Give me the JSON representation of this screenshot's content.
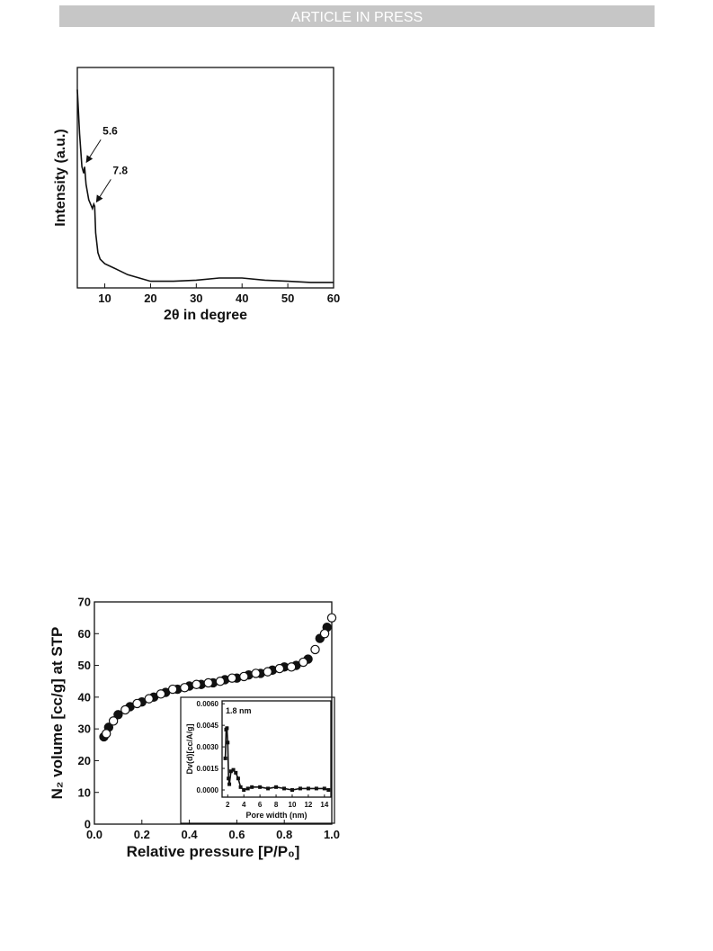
{
  "header": {
    "text": "ARTICLE IN PRESS"
  },
  "chart_data": [
    {
      "type": "line",
      "x_label": "2θ in degree",
      "y_label": "Intensity (a.u.)",
      "color": "#111111",
      "xlim": [
        4,
        60
      ],
      "ylim": [
        0,
        100
      ],
      "xticks": [
        10,
        20,
        30,
        40,
        50,
        60
      ],
      "x": [
        4,
        4.5,
        5,
        5.4,
        5.6,
        5.9,
        6.5,
        7.3,
        7.6,
        7.8,
        8,
        8.5,
        9,
        10,
        12,
        15,
        20,
        25,
        30,
        35,
        40,
        45,
        50,
        55,
        60
      ],
      "values": [
        90,
        70,
        55,
        52,
        55,
        47,
        40,
        36,
        38,
        37,
        25,
        16,
        13,
        11,
        9,
        6,
        3,
        3,
        3.5,
        4.5,
        4.5,
        3.5,
        3,
        2.5,
        2.5
      ],
      "annotations": [
        5.6,
        7.8
      ]
    },
    {
      "type": "scatter",
      "x_label": "Relative pressure [P/P₀]",
      "y_label": "N₂ volume [cc/g] at STP",
      "xlim": [
        0,
        1.0
      ],
      "ylim": [
        0,
        70
      ],
      "xticks": [
        {
          "value": 0,
          "label": "0.0"
        },
        0.2,
        0.4,
        0.6,
        0.8,
        {
          "value": 1,
          "label": "1.0"
        }
      ],
      "yticks": [
        0,
        10,
        20,
        30,
        40,
        50,
        60,
        70
      ],
      "series": [
        {
          "marker": "filled",
          "color": "#111111",
          "x": [
            0.04,
            0.06,
            0.1,
            0.15,
            0.2,
            0.25,
            0.3,
            0.35,
            0.4,
            0.45,
            0.5,
            0.55,
            0.6,
            0.65,
            0.7,
            0.75,
            0.8,
            0.85,
            0.9,
            0.95,
            0.98
          ],
          "values": [
            27.5,
            30.5,
            34.5,
            37,
            38.5,
            40,
            41.5,
            42.5,
            43.5,
            44,
            44.5,
            45.5,
            46,
            47,
            47.5,
            48.5,
            49.5,
            50,
            52,
            58.5,
            62
          ]
        },
        {
          "marker": "open",
          "color": "#111111",
          "x": [
            0.05,
            0.08,
            0.13,
            0.18,
            0.23,
            0.28,
            0.33,
            0.38,
            0.43,
            0.48,
            0.53,
            0.58,
            0.63,
            0.68,
            0.73,
            0.78,
            0.83,
            0.88,
            0.93,
            0.97,
            1.0
          ],
          "values": [
            28.5,
            32.5,
            36,
            38,
            39.5,
            41,
            42.5,
            43,
            44,
            44.5,
            45,
            46,
            46.5,
            47.5,
            48,
            49,
            49.5,
            51,
            55,
            60,
            65
          ]
        }
      ]
    },
    {
      "type": "line",
      "marker": "square",
      "x_label": "Pore width (nm)",
      "y_label": "Dv(d)[cc/A/g]",
      "color": "#111111",
      "annotation": "1.8 nm",
      "xlim": [
        1.3,
        14.8
      ],
      "ylim": [
        -0.0005,
        0.0062
      ],
      "xticks": [
        2,
        4,
        6,
        8,
        10,
        12,
        14
      ],
      "yticks": [
        {
          "value": 0,
          "label": "0.0000"
        },
        {
          "value": 0.0015,
          "label": "0.0015"
        },
        {
          "value": 0.003,
          "label": "0.0030"
        },
        {
          "value": 0.0045,
          "label": "0.0045"
        },
        {
          "value": 0.006,
          "label": "0.0060"
        }
      ],
      "x": [
        1.7,
        1.8,
        1.9,
        2.0,
        2.1,
        2.2,
        2.4,
        2.7,
        3.0,
        3.3,
        3.6,
        4,
        4.5,
        5,
        6,
        7,
        8,
        9,
        10,
        11,
        12,
        13,
        14,
        14.5
      ],
      "values": [
        0.0022,
        0.0042,
        0.0043,
        0.0033,
        0.0008,
        0.0004,
        0.0013,
        0.0014,
        0.0012,
        0.0008,
        0.0002,
        0,
        0.0001,
        0.0002,
        0.0002,
        0.0001,
        0.0002,
        0.0001,
        0,
        0.0001,
        0.0001,
        0.0001,
        0.0001,
        0
      ]
    }
  ]
}
